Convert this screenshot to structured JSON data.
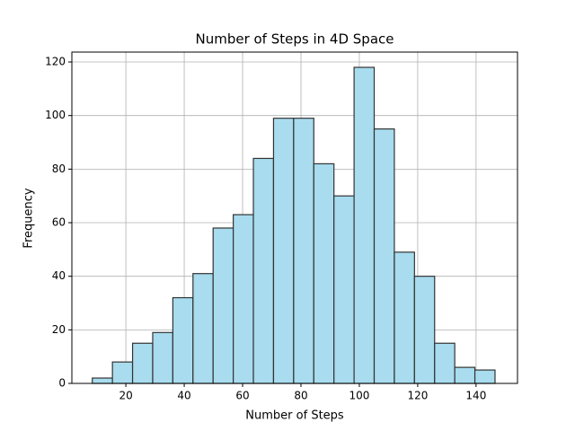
{
  "chart_data": {
    "type": "histogram",
    "title": "Number of Steps in 4D Space",
    "x_label": "Number of Steps",
    "y_label": "Frequency",
    "bins": [
      8.5,
      15.4,
      22.3,
      29.2,
      36.1,
      43,
      49.9,
      56.8,
      63.7,
      70.6,
      77.5,
      84.4,
      91.3,
      98.2,
      105.1,
      112,
      118.9,
      125.8,
      132.7,
      139.6,
      146.5
    ],
    "values": [
      2,
      8,
      15,
      19,
      32,
      41,
      58,
      63,
      84,
      99,
      99,
      82,
      70,
      118,
      95,
      49,
      40,
      15,
      6,
      5
    ],
    "color": "#a8dcee",
    "edge_color": "#333333",
    "xlim": [
      1.5,
      154.2
    ],
    "xticks": [
      20,
      40,
      60,
      80,
      100,
      120,
      140
    ],
    "ylim": [
      0,
      123.7
    ],
    "yticks": [
      0,
      20,
      40,
      60,
      80,
      100,
      120
    ],
    "grid": true
  }
}
